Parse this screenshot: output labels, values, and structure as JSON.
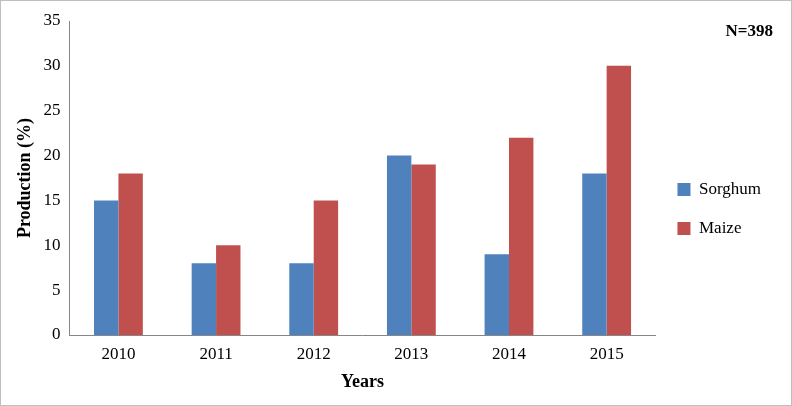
{
  "chart_data": {
    "type": "bar",
    "annotation": "N=398",
    "x_label": "Years",
    "y_label": "Production (%)",
    "categories": [
      "2010",
      "2011",
      "2012",
      "2013",
      "2014",
      "2015"
    ],
    "series": [
      {
        "name": "Sorghum",
        "color": "#4f81bd",
        "values": [
          15,
          8,
          8,
          20,
          9,
          18
        ]
      },
      {
        "name": "Maize",
        "color": "#c0504d",
        "values": [
          18,
          10,
          15,
          19,
          22,
          30
        ]
      }
    ],
    "ylim": [
      0,
      35
    ],
    "yticks": [
      0,
      5,
      10,
      15,
      20,
      25,
      30,
      35
    ],
    "grid": false,
    "legend": "right"
  }
}
